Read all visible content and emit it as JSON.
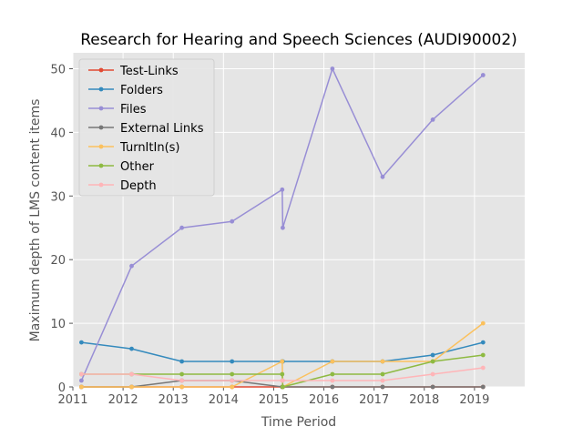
{
  "chart_data": {
    "type": "line",
    "title": "Research for Hearing and Speech Sciences (AUDI90002)",
    "xlabel": "Time Period",
    "ylabel": "Maximum depth of LMS content items",
    "xlim": [
      2011,
      2020
    ],
    "ylim": [
      0,
      52.5
    ],
    "x_ticks": [
      2011,
      2012,
      2013,
      2014,
      2015,
      2016,
      2017,
      2018,
      2019
    ],
    "y_ticks": [
      0,
      10,
      20,
      30,
      40,
      50
    ],
    "grid": true,
    "legend_position": "top-left",
    "background": "#e5e5e5",
    "x": [
      2011.17,
      2012.17,
      2013.17,
      2014.17,
      2015.17,
      2015.18,
      2016.17,
      2017.17,
      2018.17,
      2019.17
    ],
    "series": [
      {
        "name": "Test-Links",
        "color": "#e24a33",
        "values": [
          0,
          0,
          0,
          0,
          0,
          0,
          0,
          0,
          0,
          0
        ]
      },
      {
        "name": "Folders",
        "color": "#348abd",
        "values": [
          7,
          6,
          4,
          4,
          4,
          4,
          4,
          4,
          5,
          7
        ]
      },
      {
        "name": "Files",
        "color": "#988ed5",
        "values": [
          1,
          19,
          25,
          26,
          31,
          25,
          50,
          33,
          42,
          49
        ]
      },
      {
        "name": "External Links",
        "color": "#777777",
        "values": [
          0,
          0,
          1,
          1,
          0,
          0,
          0,
          0,
          0,
          0
        ]
      },
      {
        "name": "TurnItIn(s)",
        "color": "#fbc15e",
        "values": [
          0,
          0,
          0,
          0,
          4,
          0,
          4,
          4,
          4,
          10
        ]
      },
      {
        "name": "Other",
        "color": "#8eba42",
        "values": [
          2,
          2,
          2,
          2,
          2,
          0,
          2,
          2,
          4,
          5
        ]
      },
      {
        "name": "Depth",
        "color": "#ffb5b8",
        "values": [
          2,
          2,
          1,
          1,
          1,
          1,
          1,
          1,
          2,
          3
        ]
      }
    ]
  }
}
